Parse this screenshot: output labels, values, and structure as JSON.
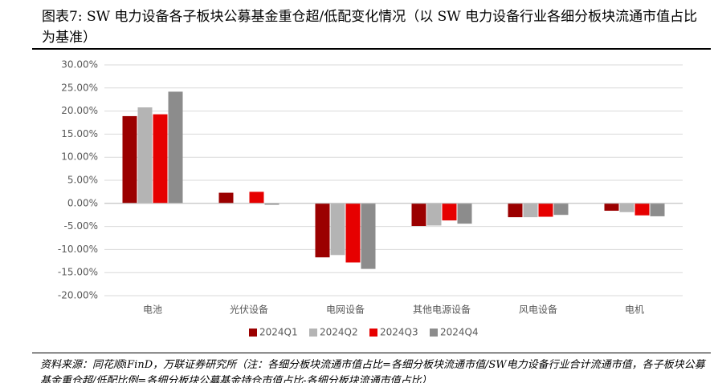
{
  "chart_data": {
    "type": "bar",
    "title": "图表7: SW 电力设备各子板块公募基金重仓超/低配变化情况（以 SW 电力设备行业各细分板块流通市值占比为基准）",
    "source": "资料来源：同花顺iFinD，万联证券研究所（注：各细分板块流通市值占比=各细分板块流通市值/SW电力设备行业合计流通市值，各子板块公募基金重仓超/低配比例=各细分板块公募基金持仓市值占比-各细分板块流通市值占比）",
    "categories": [
      "电池",
      "光伏设备",
      "电网设备",
      "其他电源设备",
      "风电设备",
      "电机"
    ],
    "series": [
      {
        "name": "2024Q1",
        "color": "#9b0000",
        "values": [
          18.9,
          2.3,
          -11.7,
          -4.9,
          -3.0,
          -1.6
        ]
      },
      {
        "name": "2024Q2",
        "color": "#b4b4b4",
        "values": [
          20.8,
          0,
          -11.2,
          -4.8,
          -3.0,
          -1.9
        ]
      },
      {
        "name": "2024Q3",
        "color": "#e60000",
        "values": [
          19.3,
          2.5,
          -12.8,
          -3.7,
          -2.9,
          -2.6
        ]
      },
      {
        "name": "2024Q4",
        "color": "#8c8c8c",
        "values": [
          24.2,
          -0.3,
          -14.2,
          -4.4,
          -2.5,
          -2.8
        ]
      }
    ],
    "ylim": [
      -20,
      30
    ],
    "yticks": [
      {
        "value": -20,
        "label": "-20.00%"
      },
      {
        "value": -15,
        "label": "-15.00%"
      },
      {
        "value": -10,
        "label": "-10.00%"
      },
      {
        "value": -5,
        "label": "-5.00%"
      },
      {
        "value": 0,
        "label": "0.00%"
      },
      {
        "value": 5,
        "label": "5.00%"
      },
      {
        "value": 10,
        "label": "10.00%"
      },
      {
        "value": 15,
        "label": "15.00%"
      },
      {
        "value": 20,
        "label": "20.00%"
      },
      {
        "value": 25,
        "label": "25.00%"
      },
      {
        "value": 30,
        "label": "30.00%"
      }
    ],
    "grid": true,
    "legend": "bottom"
  }
}
